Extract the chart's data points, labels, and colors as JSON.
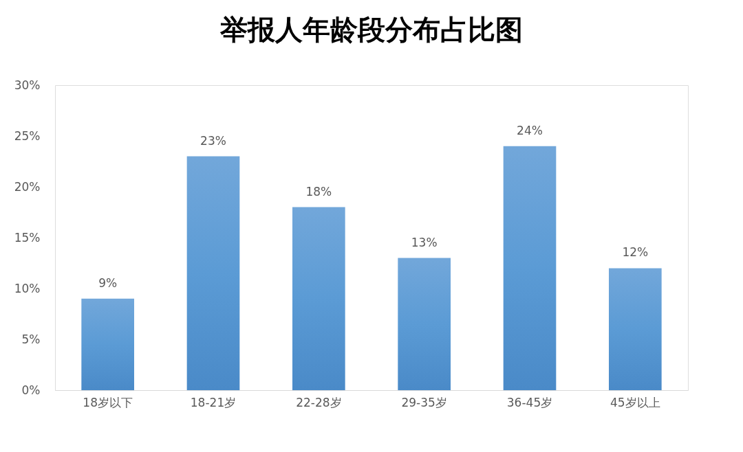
{
  "chart_data": {
    "type": "bar",
    "title": "举报人年龄段分布占比图",
    "categories": [
      "18岁以下",
      "18-21岁",
      "22-28岁",
      "29-35岁",
      "36-45岁",
      "45岁以上"
    ],
    "values": [
      9,
      23,
      18,
      13,
      24,
      12
    ],
    "value_labels": [
      "9%",
      "23%",
      "18%",
      "13%",
      "24%",
      "12%"
    ],
    "color": "#5b9bd5",
    "ylim": [
      0,
      30
    ],
    "yticks": [
      {
        "value": 0,
        "label": "0%"
      },
      {
        "value": 5,
        "label": "5%"
      },
      {
        "value": 10,
        "label": "10%"
      },
      {
        "value": 15,
        "label": "15%"
      },
      {
        "value": 20,
        "label": "20%"
      },
      {
        "value": 25,
        "label": "25%"
      },
      {
        "value": 30,
        "label": "30%"
      }
    ],
    "grid": false
  }
}
